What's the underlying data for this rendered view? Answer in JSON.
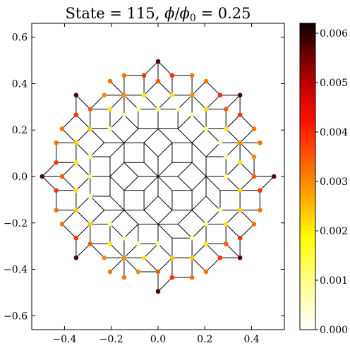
{
  "chart_data": {
    "type": "scatter",
    "title": "State = 115, ϕ/ϕ₀ = 0.25",
    "title_parts": {
      "lead": "State = 115, ",
      "phi": "ϕ",
      "slash": "/",
      "phi0": "ϕ",
      "phi0_sub": "0",
      "tail": " = 0.25"
    },
    "xlabel": "",
    "ylabel": "",
    "xlim": [
      -0.54,
      0.54
    ],
    "ylim": [
      -0.66,
      0.66
    ],
    "xticks": [
      -0.4,
      -0.2,
      0.0,
      0.2,
      0.4
    ],
    "xtick_labels": [
      "−0.4",
      "−0.2",
      "0.0",
      "0.2",
      "0.4"
    ],
    "yticks": [
      -0.6,
      -0.4,
      -0.2,
      0.0,
      0.2,
      0.4,
      0.6
    ],
    "ytick_labels": [
      "−0.6",
      "−0.4",
      "−0.2",
      "0.0",
      "0.2",
      "0.4",
      "0.6"
    ],
    "grid": false,
    "description_free": true,
    "lattice": {
      "kind": "octagonal-quasicrystal-disk",
      "radius": 0.5,
      "symmetry": 8
    },
    "colorbar": {
      "cmap": "hot_r",
      "vmin": 0.0,
      "vmax": 0.0062,
      "ticks": [
        0.0,
        0.001,
        0.002,
        0.003,
        0.004,
        0.005,
        0.006
      ],
      "tick_labels": [
        "0.000",
        "0.001",
        "0.002",
        "0.003",
        "0.004",
        "0.005",
        "0.006"
      ]
    },
    "colors": {
      "edge": "#000000",
      "hot_stops": [
        "#ffffff",
        "#ffff60",
        "#ffd400",
        "#ff8000",
        "#ff2000",
        "#c00000",
        "#600000",
        "#0b0000"
      ]
    }
  }
}
